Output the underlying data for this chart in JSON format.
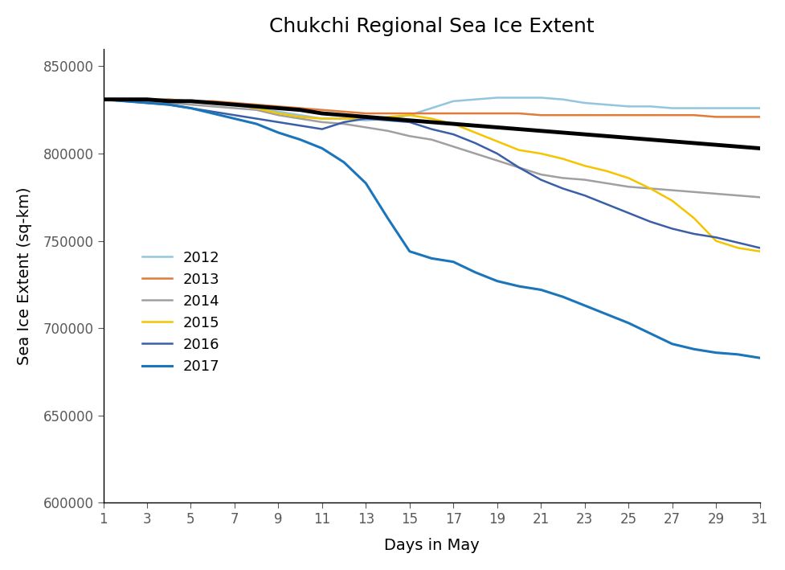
{
  "title": "Chukchi Regional Sea Ice Extent",
  "xlabel": "Days in May",
  "ylabel": "Sea Ice Extent (sq-km)",
  "xlim": [
    1,
    31
  ],
  "ylim": [
    600000,
    860000
  ],
  "yticks": [
    600000,
    650000,
    700000,
    750000,
    800000,
    850000
  ],
  "xticks": [
    1,
    3,
    5,
    7,
    9,
    11,
    13,
    15,
    17,
    19,
    21,
    23,
    25,
    27,
    29,
    31
  ],
  "days": [
    1,
    2,
    3,
    4,
    5,
    6,
    7,
    8,
    9,
    10,
    11,
    12,
    13,
    14,
    15,
    16,
    17,
    18,
    19,
    20,
    21,
    22,
    23,
    24,
    25,
    26,
    27,
    28,
    29,
    30,
    31
  ],
  "series": {
    "2012": {
      "color": "#92C5DE",
      "linewidth": 1.8,
      "values": [
        831000,
        831000,
        831000,
        831000,
        830000,
        829000,
        828000,
        826000,
        824000,
        822000,
        820000,
        820000,
        819000,
        820000,
        822000,
        826000,
        830000,
        831000,
        832000,
        832000,
        832000,
        831000,
        829000,
        828000,
        827000,
        827000,
        826000,
        826000,
        826000,
        826000,
        826000
      ]
    },
    "2013": {
      "color": "#E07B39",
      "linewidth": 1.8,
      "values": [
        831000,
        831000,
        831000,
        831000,
        830000,
        830000,
        829000,
        828000,
        827000,
        826000,
        825000,
        824000,
        823000,
        823000,
        823000,
        823000,
        823000,
        823000,
        823000,
        823000,
        822000,
        822000,
        822000,
        822000,
        822000,
        822000,
        822000,
        822000,
        821000,
        821000,
        821000
      ]
    },
    "2014": {
      "color": "#A0A0A0",
      "linewidth": 1.8,
      "values": [
        831000,
        831000,
        830000,
        829000,
        828000,
        827000,
        826000,
        825000,
        822000,
        820000,
        818000,
        817000,
        815000,
        813000,
        810000,
        808000,
        804000,
        800000,
        796000,
        792000,
        788000,
        786000,
        785000,
        783000,
        781000,
        780000,
        779000,
        778000,
        777000,
        776000,
        775000
      ]
    },
    "2015": {
      "color": "#F5C400",
      "linewidth": 1.8,
      "values": [
        831000,
        831000,
        831000,
        830000,
        830000,
        829000,
        828000,
        826000,
        823000,
        821000,
        820000,
        820000,
        820000,
        821000,
        822000,
        820000,
        817000,
        812000,
        807000,
        802000,
        800000,
        797000,
        793000,
        790000,
        786000,
        780000,
        773000,
        763000,
        750000,
        746000,
        744000
      ]
    },
    "2016": {
      "color": "#3A5FA8",
      "linewidth": 1.8,
      "values": [
        831000,
        830000,
        829000,
        828000,
        826000,
        824000,
        822000,
        820000,
        818000,
        816000,
        814000,
        818000,
        820000,
        819000,
        818000,
        814000,
        811000,
        806000,
        800000,
        792000,
        785000,
        780000,
        776000,
        771000,
        766000,
        761000,
        757000,
        754000,
        752000,
        749000,
        746000
      ]
    },
    "2017": {
      "color": "#1B75BB",
      "linewidth": 2.2,
      "values": [
        831000,
        830000,
        829000,
        828000,
        826000,
        823000,
        820000,
        817000,
        812000,
        808000,
        803000,
        795000,
        783000,
        763000,
        744000,
        740000,
        738000,
        732000,
        727000,
        724000,
        722000,
        718000,
        713000,
        708000,
        703000,
        697000,
        691000,
        688000,
        686000,
        685000,
        683000
      ]
    },
    "mean": {
      "color": "#000000",
      "linewidth": 3.5,
      "values": [
        831000,
        831000,
        831000,
        830000,
        830000,
        829000,
        828000,
        827000,
        826000,
        825000,
        823000,
        822000,
        821000,
        820000,
        819000,
        818000,
        817000,
        816000,
        815000,
        814000,
        813000,
        812000,
        811000,
        810000,
        809000,
        808000,
        807000,
        806000,
        805000,
        804000,
        803000
      ]
    }
  },
  "tick_color": "#595959",
  "tick_fontsize": 12,
  "label_fontsize": 14,
  "title_fontsize": 18,
  "legend_fontsize": 13
}
